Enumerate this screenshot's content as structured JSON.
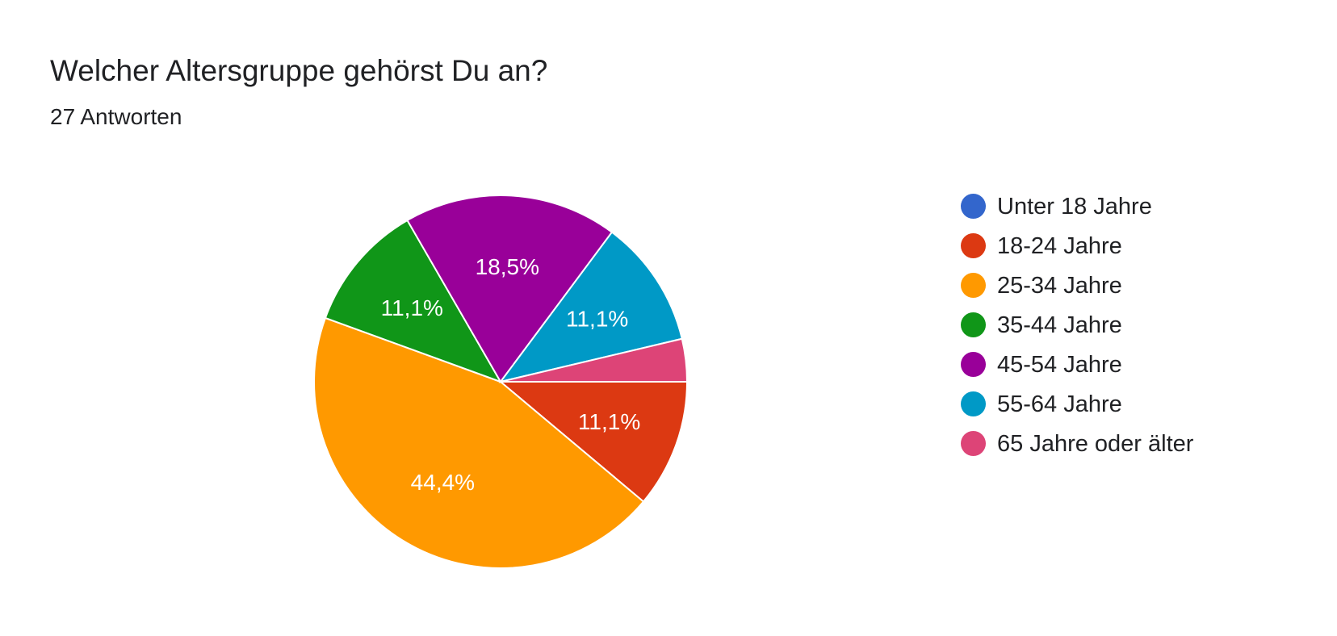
{
  "question": {
    "title": "Welcher Altersgruppe gehörst Du an?",
    "responses": "27 Antworten"
  },
  "chart_data": {
    "type": "pie",
    "title": "Welcher Altersgruppe gehörst Du an?",
    "total_responses": 27,
    "categories": [
      "Unter 18 Jahre",
      "18-24 Jahre",
      "25-34 Jahre",
      "35-44 Jahre",
      "45-54 Jahre",
      "55-64 Jahre",
      "65 Jahre oder älter"
    ],
    "values": [
      0,
      3,
      12,
      3,
      5,
      3,
      1
    ],
    "percent_labels": [
      "",
      "11,1%",
      "44,4%",
      "11,1%",
      "18,5%",
      "11,1%",
      ""
    ],
    "colors": [
      "#3366cc",
      "#dc3912",
      "#ff9900",
      "#109618",
      "#990099",
      "#0099c6",
      "#dd4477"
    ],
    "legend_position": "right"
  }
}
